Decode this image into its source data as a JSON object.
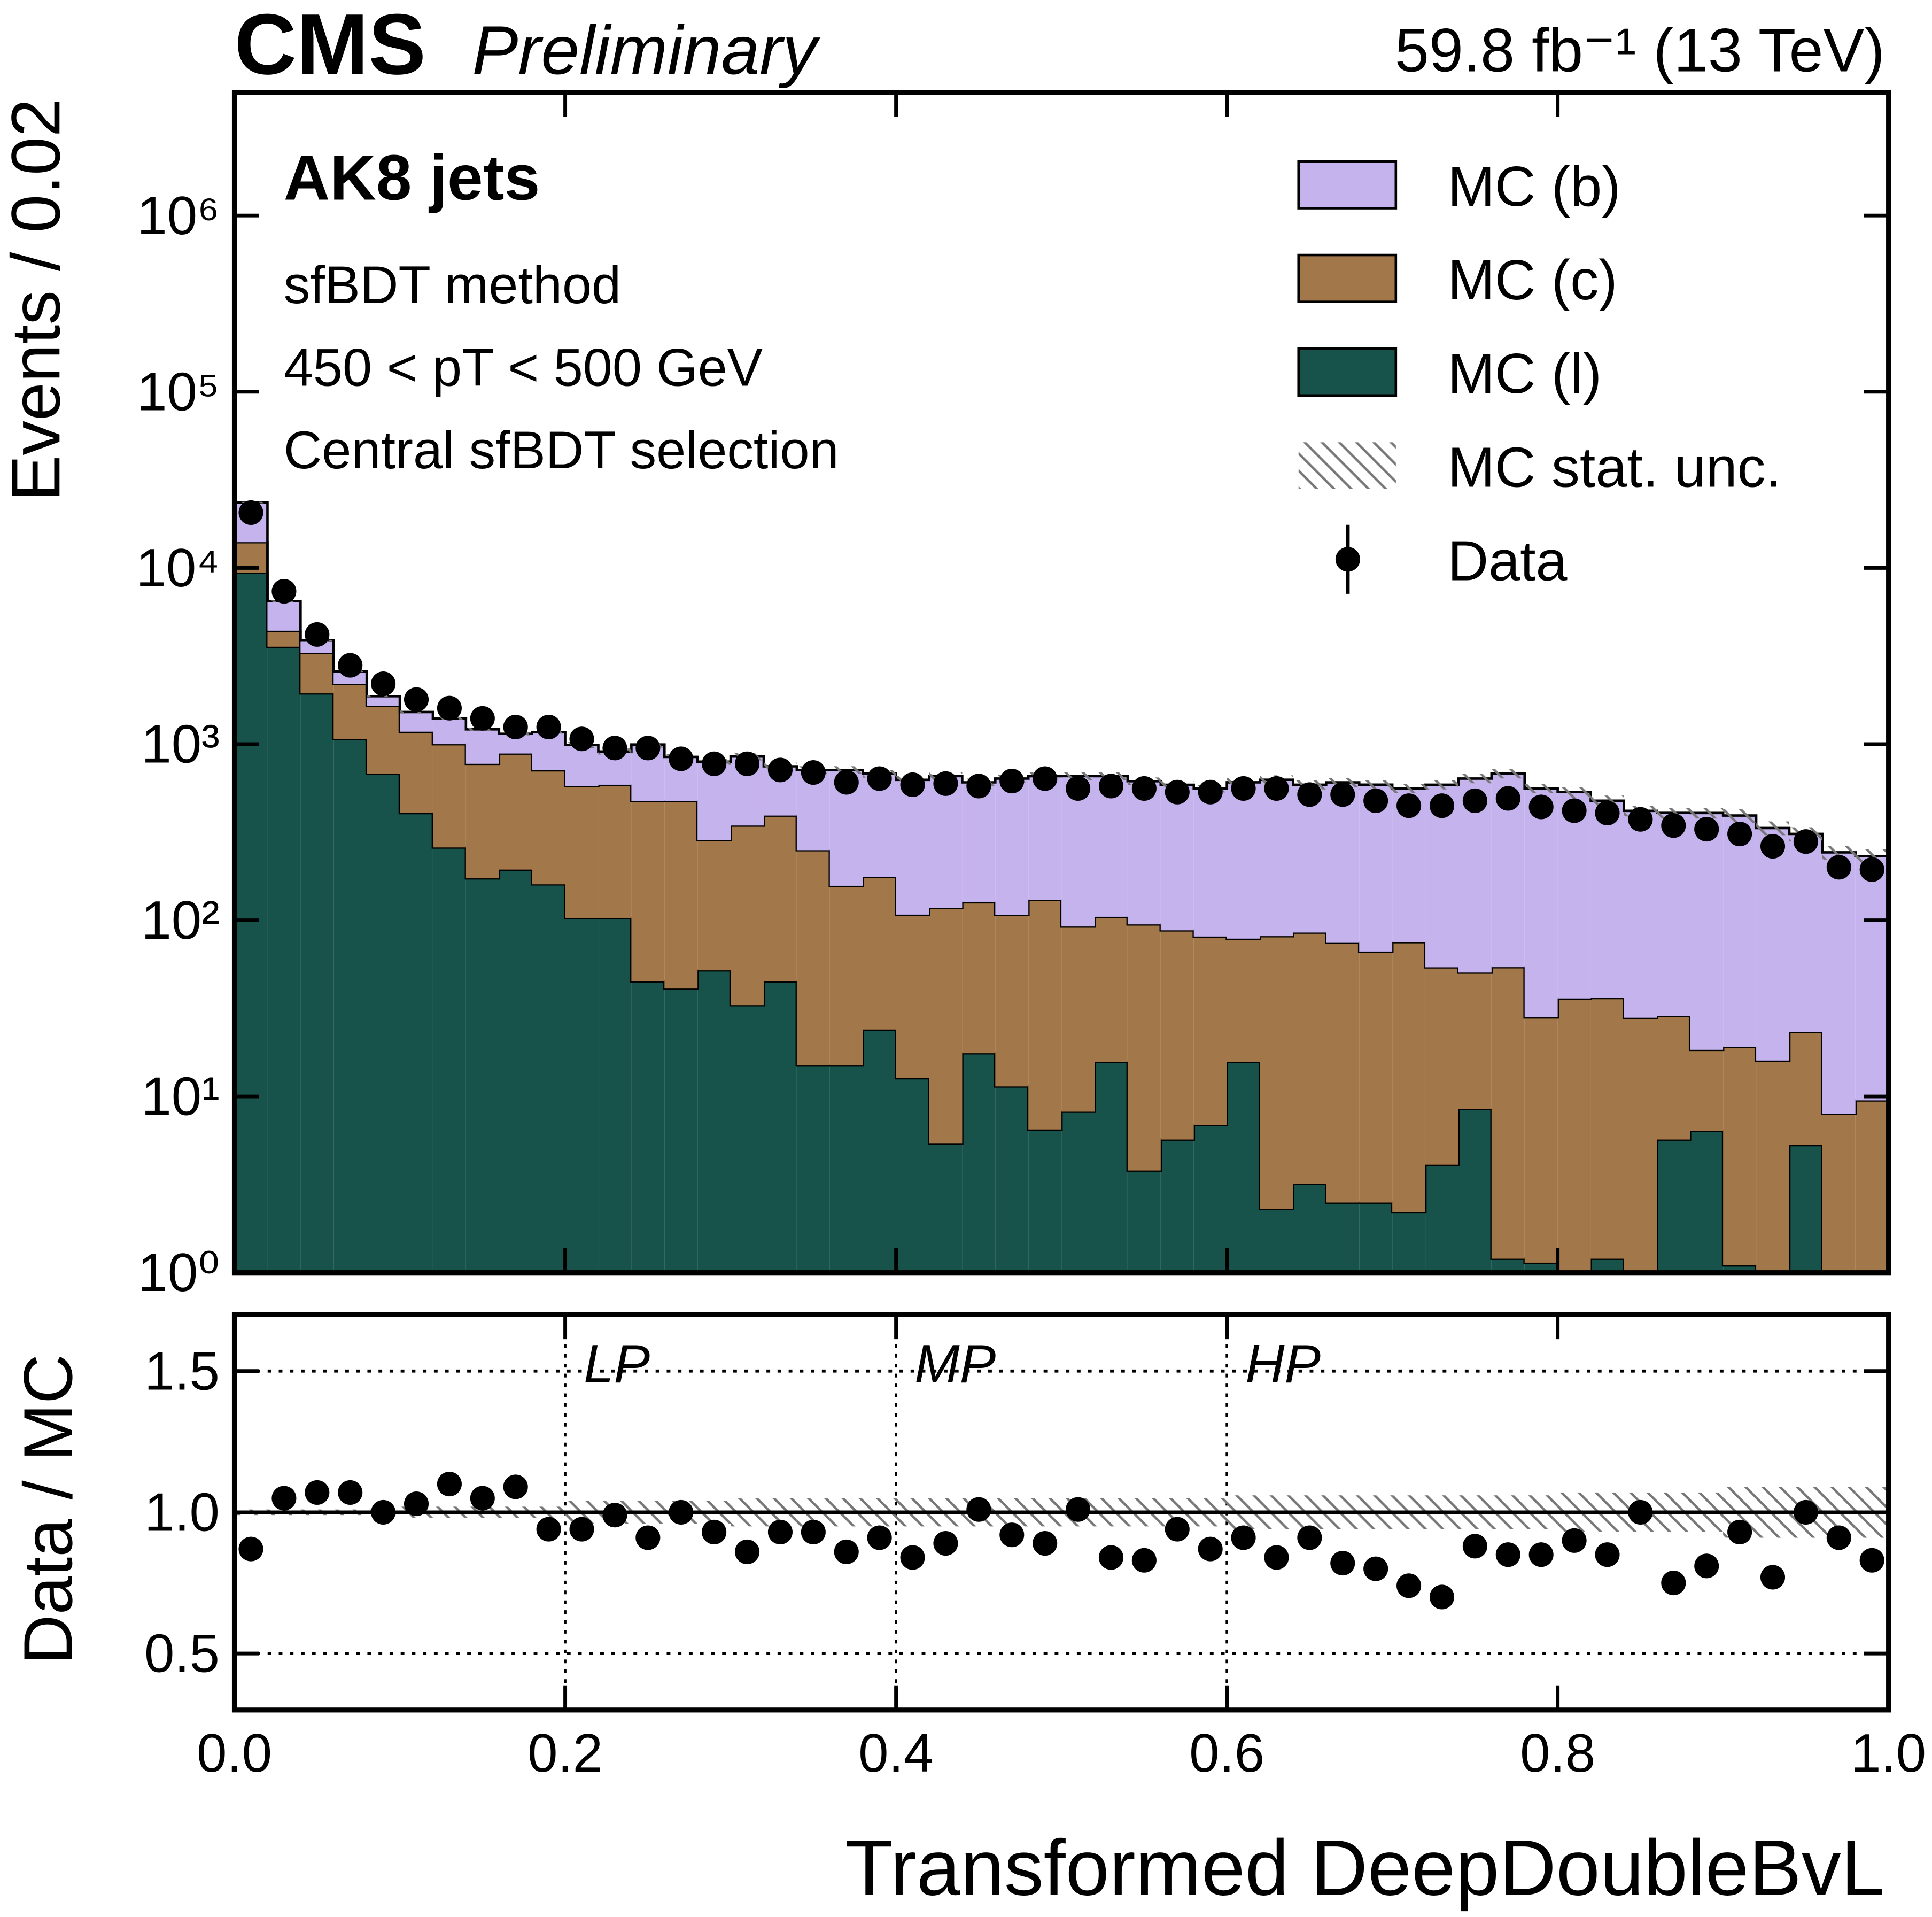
{
  "chart_data": {
    "type": "stacked_histogram",
    "experiment": "CMS",
    "tag": "Preliminary",
    "lumi": "59.8 fb⁻¹ (13 TeV)",
    "annotations": [
      "AK8 jets",
      "sfBDT method",
      "450 < pT < 500 GeV",
      "Central sfBDT selection"
    ],
    "xlabel": "Transformed DeepDoubleBvL",
    "ylabel": "Events / 0.02",
    "bins": [
      0,
      0.02,
      0.04,
      0.06,
      0.08,
      0.1,
      0.12,
      0.14,
      0.16,
      0.18,
      0.2,
      0.22,
      0.24,
      0.26,
      0.28,
      0.3,
      0.32,
      0.34,
      0.36,
      0.38,
      0.4,
      0.42,
      0.44,
      0.46,
      0.48,
      0.5,
      0.52,
      0.54,
      0.56,
      0.58,
      0.6,
      0.62,
      0.64,
      0.66,
      0.68,
      0.7,
      0.72,
      0.74,
      0.76,
      0.78,
      0.8,
      0.82,
      0.84,
      0.86,
      0.88,
      0.9,
      0.92,
      0.94,
      0.96,
      0.98,
      1.0
    ],
    "series": [
      {
        "name": "MC (b)",
        "color": "#c5b3ed",
        "values": [
          9500,
          2070,
          580,
          390,
          220,
          345,
          400,
          440,
          260,
          460,
          410,
          320,
          520,
          370,
          510,
          505,
          355,
          463,
          556,
          503,
          519,
          541,
          480,
          530,
          527,
          566,
          553,
          521,
          500,
          479,
          528,
          546,
          503,
          532,
          522,
          485,
          534,
          587,
          625,
          532,
          498,
          441,
          390,
          378,
          388,
          374,
          318,
          286,
          235,
          222
        ]
      },
      {
        "name": "MC (c)",
        "color": "#a2784a",
        "values": [
          4600,
          830,
          1350,
          1130,
          970,
          770,
          740,
          600,
          690,
          550,
          475,
          485,
          430,
          435,
          233,
          312,
          348,
          235,
          142,
          152,
          95,
          112,
          109,
          96,
          124,
          84,
          89,
          91,
          82,
          74,
          63,
          79,
          82,
          72,
          64,
          73,
          50,
          42,
          53,
          27,
          36,
          35,
          28,
          23,
          12,
          18,
          16,
          18,
          8,
          9.5
        ]
      },
      {
        "name": "MC (l)",
        "color": "#17534b",
        "values": [
          9400,
          3570,
          1940,
          1070,
          680,
          406,
          259,
          173,
          194,
          160,
          103,
          103,
          45,
          41,
          52,
          33,
          45,
          15,
          15,
          24,
          12.7,
          5.4,
          17.6,
          11.4,
          6.5,
          8.2,
          15.7,
          3.8,
          5.7,
          6.9,
          15.7,
          2.3,
          3.2,
          2.5,
          2.5,
          2.2,
          4.1,
          8.5,
          1.2,
          1.14,
          0,
          1.2,
          0,
          5.7,
          6.4,
          1.1,
          0,
          5.3,
          0,
          0
        ]
      }
    ],
    "stat_unc": {
      "name": "MC stat. unc.",
      "color": "#777777",
      "values": [
        0.01,
        0.01,
        0.01,
        0.01,
        0.01,
        0.02,
        0.02,
        0.02,
        0.02,
        0.02,
        0.04,
        0.04,
        0.04,
        0.04,
        0.04,
        0.05,
        0.05,
        0.05,
        0.05,
        0.05,
        0.05,
        0.05,
        0.05,
        0.05,
        0.05,
        0.05,
        0.05,
        0.05,
        0.05,
        0.05,
        0.06,
        0.06,
        0.06,
        0.06,
        0.06,
        0.06,
        0.06,
        0.06,
        0.06,
        0.06,
        0.07,
        0.07,
        0.07,
        0.07,
        0.07,
        0.09,
        0.09,
        0.09,
        0.09,
        0.09
      ]
    },
    "data": {
      "name": "Data",
      "color": "#000000",
      "values": [
        20600,
        7370,
        4190,
        2800,
        2200,
        1790,
        1600,
        1400,
        1250,
        1250,
        1070,
        950,
        950,
        825,
        773,
        773,
        713,
        690,
        607,
        637,
        588,
        597,
        578,
        617,
        637,
        560,
        578,
        560,
        534,
        534,
        560,
        560,
        517,
        517,
        477,
        447,
        447,
        477,
        492,
        440,
        419,
        406,
        374,
        345,
        329,
        309,
        263,
        280,
        200,
        194
      ]
    },
    "log_y": true,
    "legend": "upper right",
    "ylim": [
      1,
      5000000
    ],
    "yticks": [
      {
        "value": 1,
        "label": "10⁰"
      },
      {
        "value": 10,
        "label": "10¹"
      },
      {
        "value": 100,
        "label": "10²"
      },
      {
        "value": 1000,
        "label": "10³"
      },
      {
        "value": 10000,
        "label": "10⁴"
      },
      {
        "value": 100000,
        "label": "10⁵"
      },
      {
        "value": 1000000,
        "label": "10⁶"
      }
    ],
    "xlim": [
      0,
      1
    ],
    "xticks": [
      {
        "value": 0,
        "label": "0.0"
      },
      0.2,
      0.4,
      0.6,
      0.8,
      {
        "value": 1,
        "label": "1.0"
      }
    ],
    "ratio": {
      "ylabel": "Data / MC",
      "ylim": [
        0.3,
        1.7
      ],
      "yticks": [
        0.5,
        {
          "value": 1,
          "label": "1.0"
        },
        1.5
      ],
      "grid": true,
      "reference": 1,
      "values": [
        0.87,
        1.05,
        1.07,
        1.07,
        1.0,
        1.03,
        1.1,
        1.05,
        1.09,
        0.94,
        0.94,
        0.99,
        0.91,
        1.0,
        0.93,
        0.86,
        0.93,
        0.93,
        0.86,
        0.91,
        0.84,
        0.89,
        1.01,
        0.92,
        0.89,
        1.01,
        0.84,
        0.83,
        0.94,
        0.87,
        0.91,
        0.84,
        0.91,
        0.82,
        0.8,
        0.74,
        0.7,
        0.88,
        0.85,
        0.85,
        0.9,
        0.85,
        1.0,
        0.75,
        0.81,
        0.93,
        0.77,
        1.0,
        0.91,
        0.83
      ],
      "working_points": [
        {
          "value": 0.2,
          "label": "LP"
        },
        {
          "value": 0.4,
          "label": "MP"
        },
        {
          "value": 0.6,
          "label": "HP"
        }
      ]
    }
  }
}
